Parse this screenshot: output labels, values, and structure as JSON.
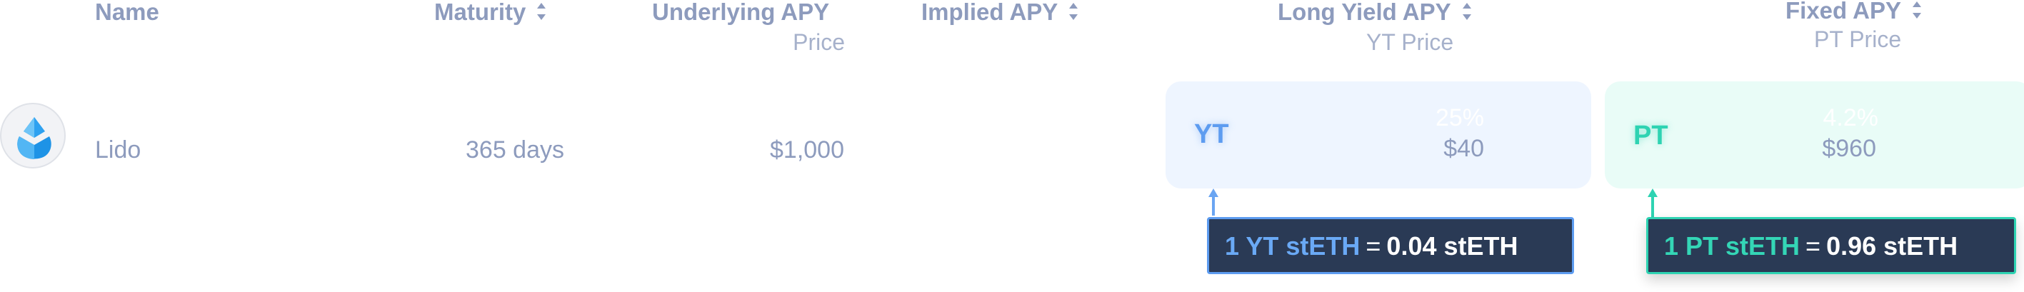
{
  "header": {
    "name": "Name",
    "maturity": "Maturity",
    "underlying_apy": "Underlying APY",
    "underlying_sub": "Price",
    "implied_apy": "Implied APY",
    "long_yield_apy": "Long Yield APY",
    "long_yield_sub": "YT Price",
    "fixed_apy": "Fixed APY",
    "fixed_sub": "PT Price"
  },
  "row": {
    "name": "Lido",
    "icon": "lido-drop-icon",
    "maturity": "365 days",
    "underlying_price": "$1,000",
    "yt": {
      "tag": "YT",
      "apy": "25%",
      "price": "$40"
    },
    "pt": {
      "tag": "PT",
      "apy": "4.2%",
      "price": "$960"
    }
  },
  "tooltips": {
    "yt": {
      "token": "1 YT stETH",
      "equals": "=",
      "value": "0.04 stETH"
    },
    "pt": {
      "token": "1 PT stETH",
      "equals": "=",
      "value": "0.96 stETH"
    }
  },
  "colors": {
    "header_text": "#8d9bbd",
    "yt_accent": "#5d9cf0",
    "pt_accent": "#2ed3b2",
    "tooltip_bg": "#2a3a55"
  }
}
